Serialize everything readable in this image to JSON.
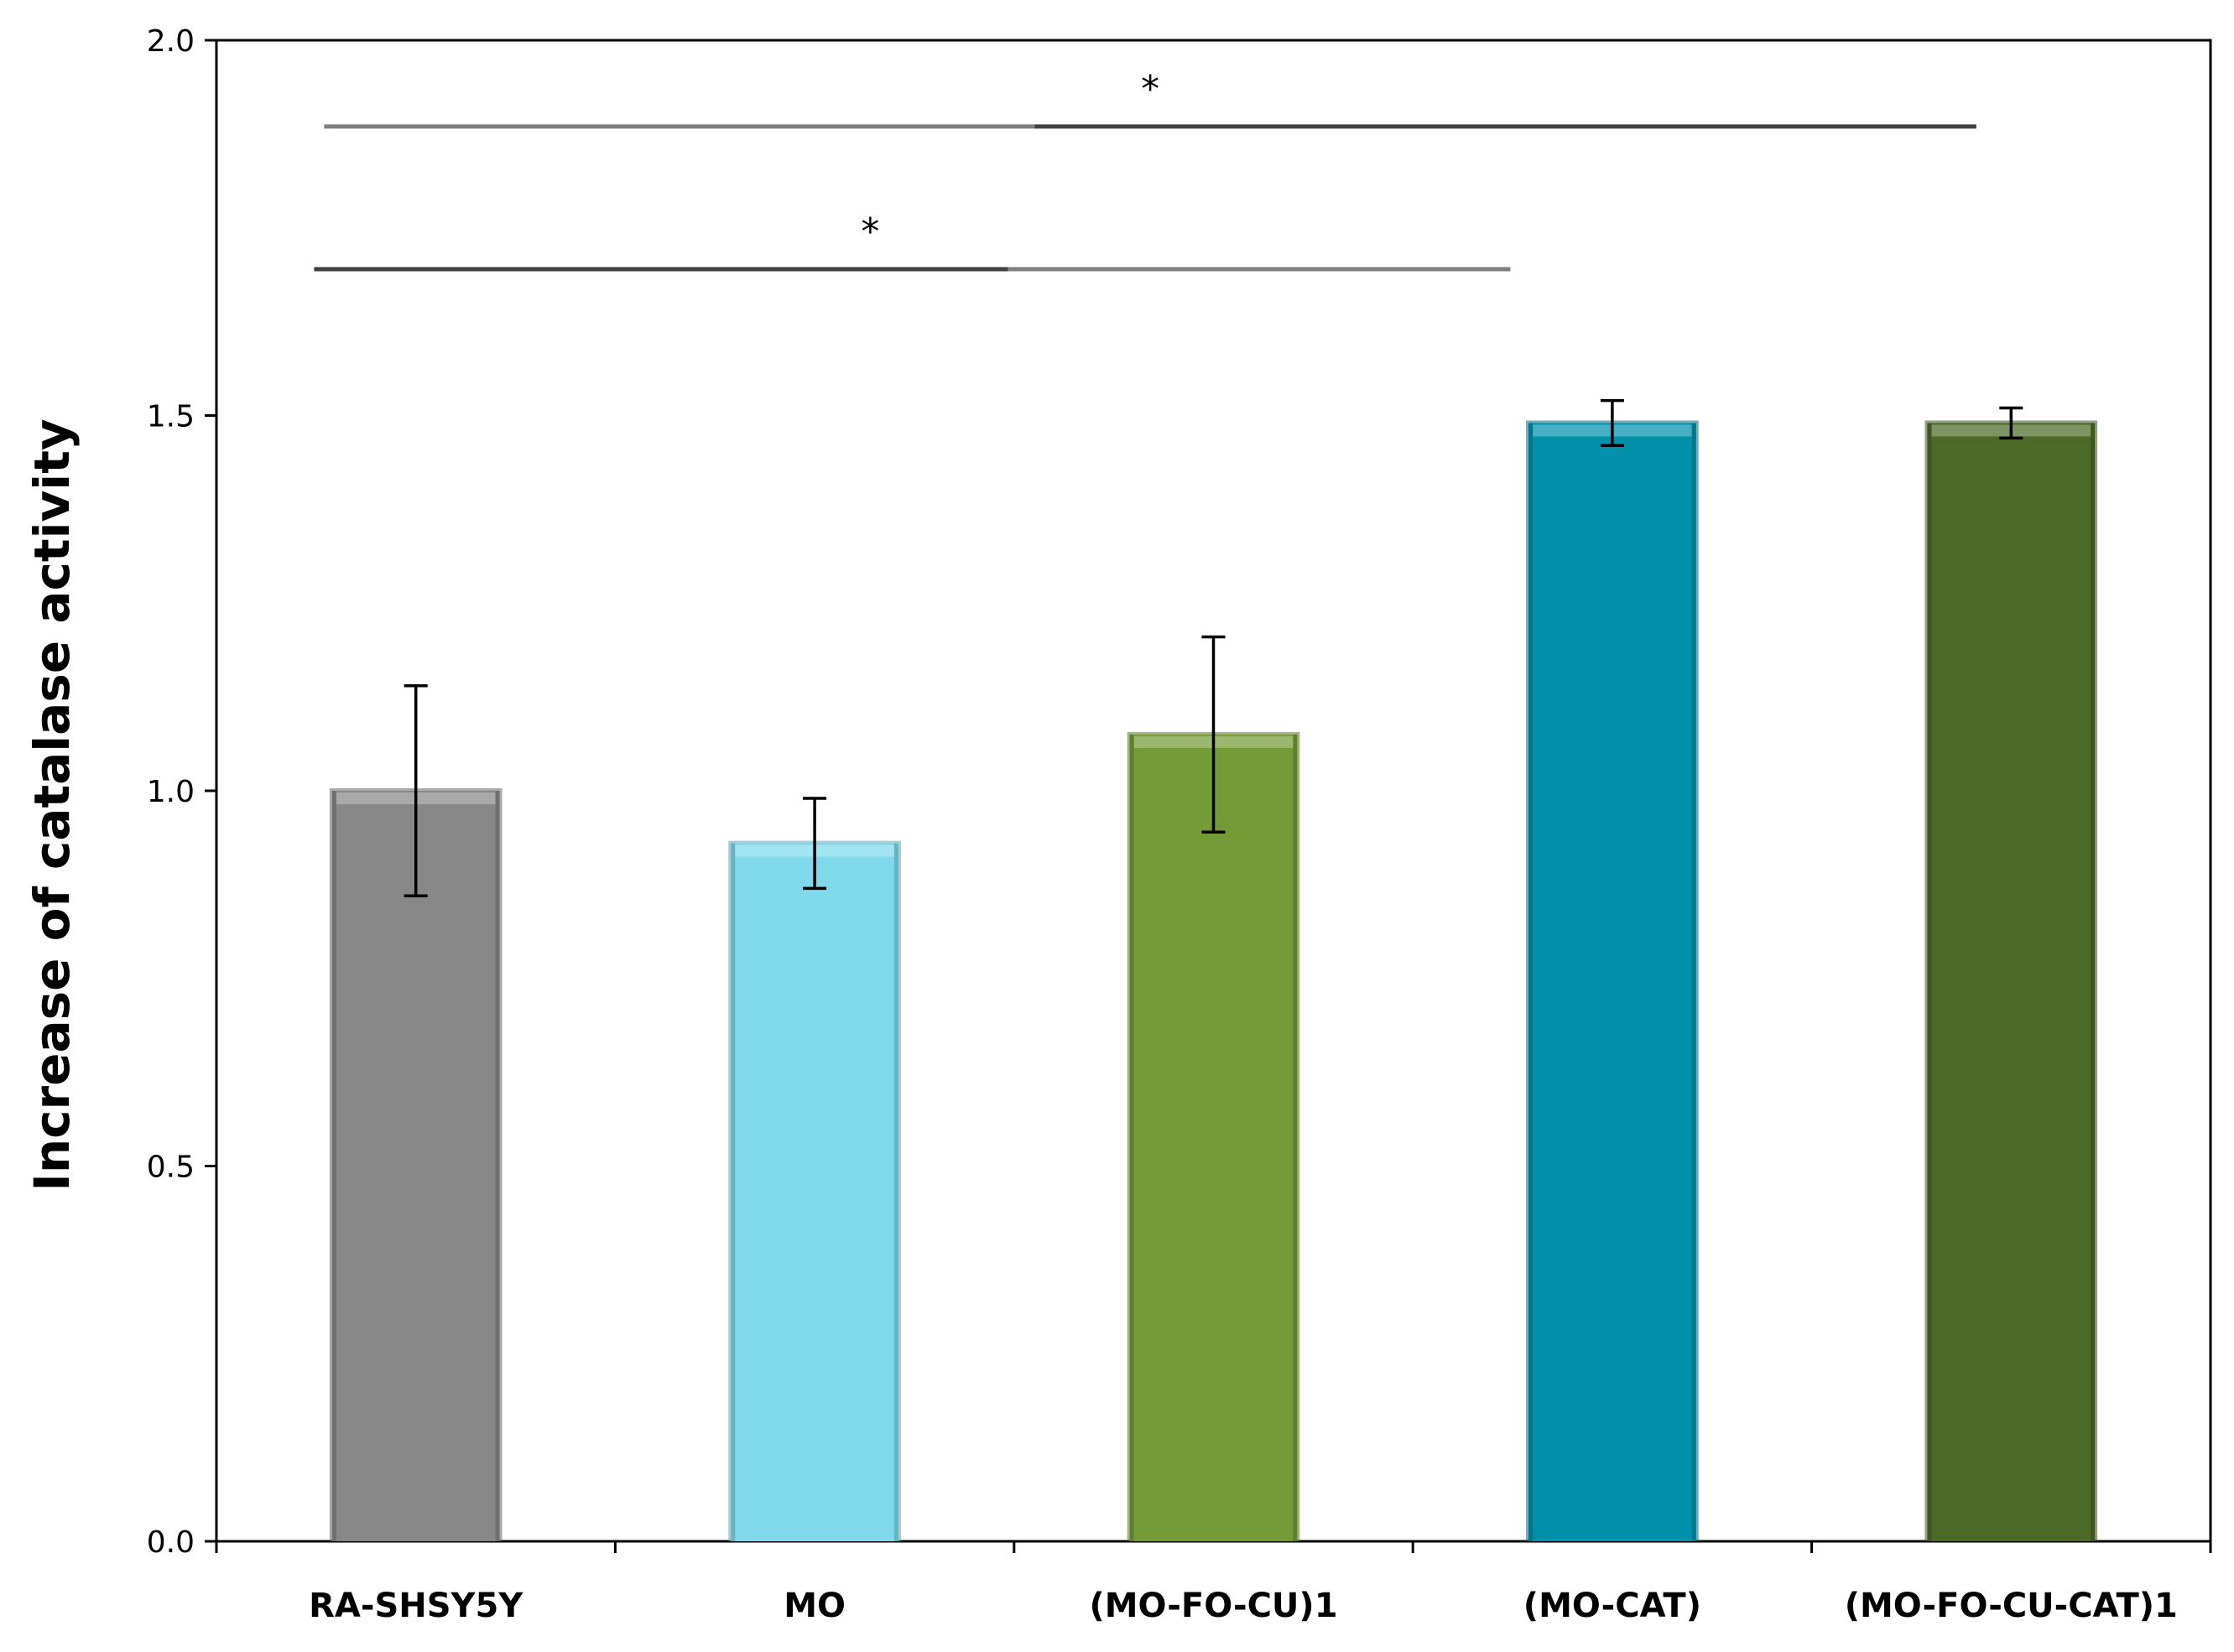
{
  "chart_data": {
    "type": "bar",
    "title": "",
    "xlabel": "",
    "ylabel": "Increase of catalase activity",
    "ylim": [
      0,
      2.0
    ],
    "yticks": [
      0.0,
      0.5,
      1.0,
      1.5,
      2.0
    ],
    "ytick_labels": [
      "0.0",
      "0.5",
      "1.0",
      "1.5",
      "2.0"
    ],
    "grid": false,
    "categories": [
      "RA-SHSY5Y",
      "MO",
      "(MO-FO-CU)1",
      "(MO-CAT)",
      "(MO-FO-CU-CAT)1"
    ],
    "values": [
      1.0,
      0.93,
      1.075,
      1.49,
      1.49
    ],
    "errors": [
      0.14,
      0.06,
      0.13,
      0.03,
      0.02
    ],
    "colors": [
      "#888888",
      "#7fd9eb",
      "#739c36",
      "#0090ac",
      "#4b6a27"
    ],
    "significance": [
      {
        "from": 0,
        "to": 4,
        "label": "*",
        "level": 1.885
      },
      {
        "from": 0,
        "to": 3,
        "label": "*",
        "level": 1.695
      }
    ]
  }
}
